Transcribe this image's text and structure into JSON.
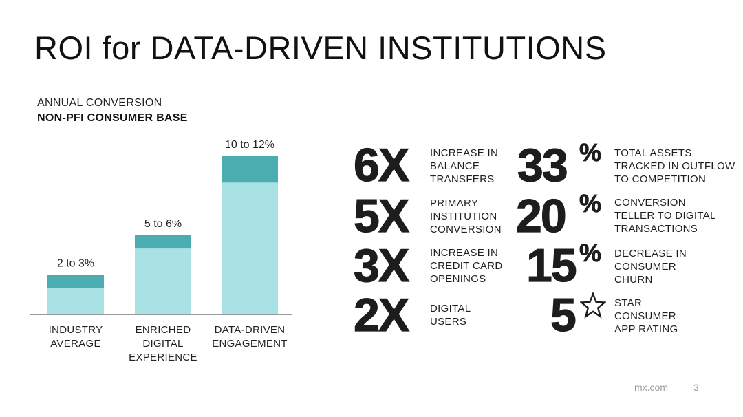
{
  "title": "ROI for DATA-DRIVEN INSTITUTIONS",
  "chart_label_line1": "ANNUAL CONVERSION",
  "chart_label_line2": "NON-PFI CONSUMER BASE",
  "chart_data": {
    "type": "bar",
    "title": "",
    "categories": [
      [
        "INDUSTRY",
        "AVERAGE"
      ],
      [
        "ENRICHED",
        "DIGITAL",
        "EXPERIENCE"
      ],
      [
        "DATA-DRIVEN",
        "ENGAGEMENT"
      ]
    ],
    "ranges": [
      [
        2,
        3
      ],
      [
        5,
        6
      ],
      [
        10,
        12
      ]
    ],
    "data_labels": [
      "2 to 3%",
      "5 to 6%",
      "10 to 12%"
    ],
    "ylim": [
      0,
      12
    ],
    "colors": {
      "range_top": "#4aaeb0",
      "base": "#a8e2e4",
      "axis": "#9a9a9a"
    },
    "grid": false
  },
  "stats_left": [
    {
      "value": "6X",
      "desc": "INCREASE IN\nBALANCE\nTRANSFERS"
    },
    {
      "value": "5X",
      "desc": "PRIMARY\nINSTITUTION\nCONVERSION"
    },
    {
      "value": "3X",
      "desc": "INCREASE IN\nCREDIT CARD\nOPENINGS"
    },
    {
      "value": "2X",
      "desc": "DIGITAL\nUSERS"
    }
  ],
  "stats_right": [
    {
      "value": "33",
      "suffix": "%",
      "desc": "TOTAL ASSETS\nTRACKED IN OUTFLOW\nTO COMPETITION"
    },
    {
      "value": "20",
      "suffix": "%",
      "desc": "CONVERSION\nTELLER TO DIGITAL\nTRANSACTIONS"
    },
    {
      "value": "15",
      "suffix": "%",
      "desc": "DECREASE IN\nCONSUMER\nCHURN"
    },
    {
      "value": "5",
      "suffix": "",
      "icon": "star-outline-icon",
      "desc": "STAR\nCONSUMER\nAPP RATING"
    }
  ],
  "footer": {
    "site": "mx.com",
    "page": "3"
  }
}
